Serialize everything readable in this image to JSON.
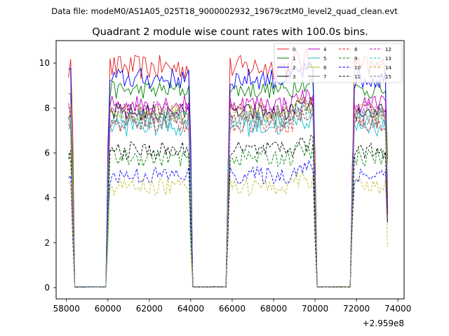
{
  "figure": {
    "suptitle": "Data file: modeM0/AS1A05_025T18_9000002932_19679cztM0_level2_quad_clean.evt"
  },
  "chart_data": {
    "type": "line",
    "title": "Quadrant 2 module wise count rates with 100.0s bins.",
    "xlabel": "",
    "ylabel": "",
    "x_offset_label": "+2.959e8",
    "xlim": [
      57500,
      74300
    ],
    "ylim": [
      -0.5,
      11
    ],
    "xticks": [
      58000,
      60000,
      62000,
      64000,
      66000,
      68000,
      70000,
      72000,
      74000
    ],
    "xtick_labels": [
      "58000",
      "60000",
      "62000",
      "64000",
      "66000",
      "68000",
      "70000",
      "72000",
      "74000"
    ],
    "yticks": [
      0,
      2,
      4,
      6,
      8,
      10
    ],
    "ytick_labels": [
      "0",
      "2",
      "4",
      "6",
      "8",
      "10"
    ],
    "grid": false,
    "legend_position": "top-right",
    "bin_width_s": 100,
    "segments": [
      {
        "start": 58100,
        "end": 58300
      },
      {
        "start": 58300,
        "end": 60000
      },
      {
        "start": 60000,
        "end": 64000
      },
      {
        "start": 64000,
        "end": 65800
      },
      {
        "start": 65800,
        "end": 70000
      },
      {
        "start": 70000,
        "end": 71800
      },
      {
        "start": 71800,
        "end": 73500
      }
    ],
    "series": [
      {
        "name": "0",
        "color": "#e41a1c",
        "dashed": false,
        "level": 9.8,
        "noise": 0.35
      },
      {
        "name": "1",
        "color": "#008000",
        "dashed": false,
        "level": 8.8,
        "noise": 0.25
      },
      {
        "name": "2",
        "color": "#0000ff",
        "dashed": false,
        "level": 9.3,
        "noise": 0.3
      },
      {
        "name": "3",
        "color": "#000000",
        "dashed": false,
        "level": 7.8,
        "noise": 0.25
      },
      {
        "name": "4",
        "color": "#bf00bf",
        "dashed": false,
        "level": 8.2,
        "noise": 0.25
      },
      {
        "name": "5",
        "color": "#17becf",
        "dashed": false,
        "level": 7.2,
        "noise": 0.3
      },
      {
        "name": "6",
        "color": "#bcbd22",
        "dashed": false,
        "level": 7.8,
        "noise": 0.25
      },
      {
        "name": "7",
        "color": "#7f7f7f",
        "dashed": false,
        "level": 7.5,
        "noise": 0.3
      },
      {
        "name": "8",
        "color": "#e41a1c",
        "dashed": true,
        "level": 7.3,
        "noise": 0.25
      },
      {
        "name": "9",
        "color": "#008000",
        "dashed": true,
        "level": 5.8,
        "noise": 0.25
      },
      {
        "name": "10",
        "color": "#0000ff",
        "dashed": true,
        "level": 5.0,
        "noise": 0.25
      },
      {
        "name": "11",
        "color": "#000000",
        "dashed": true,
        "level": 6.1,
        "noise": 0.25
      },
      {
        "name": "12",
        "color": "#bf00bf",
        "dashed": true,
        "level": 7.9,
        "noise": 0.25
      },
      {
        "name": "13",
        "color": "#17becf",
        "dashed": true,
        "level": 7.5,
        "noise": 0.25
      },
      {
        "name": "14",
        "color": "#bcbd22",
        "dashed": true,
        "level": 4.5,
        "noise": 0.25
      },
      {
        "name": "15",
        "color": "#7f7f7f",
        "dashed": true,
        "level": 7.6,
        "noise": 0.3
      }
    ]
  }
}
